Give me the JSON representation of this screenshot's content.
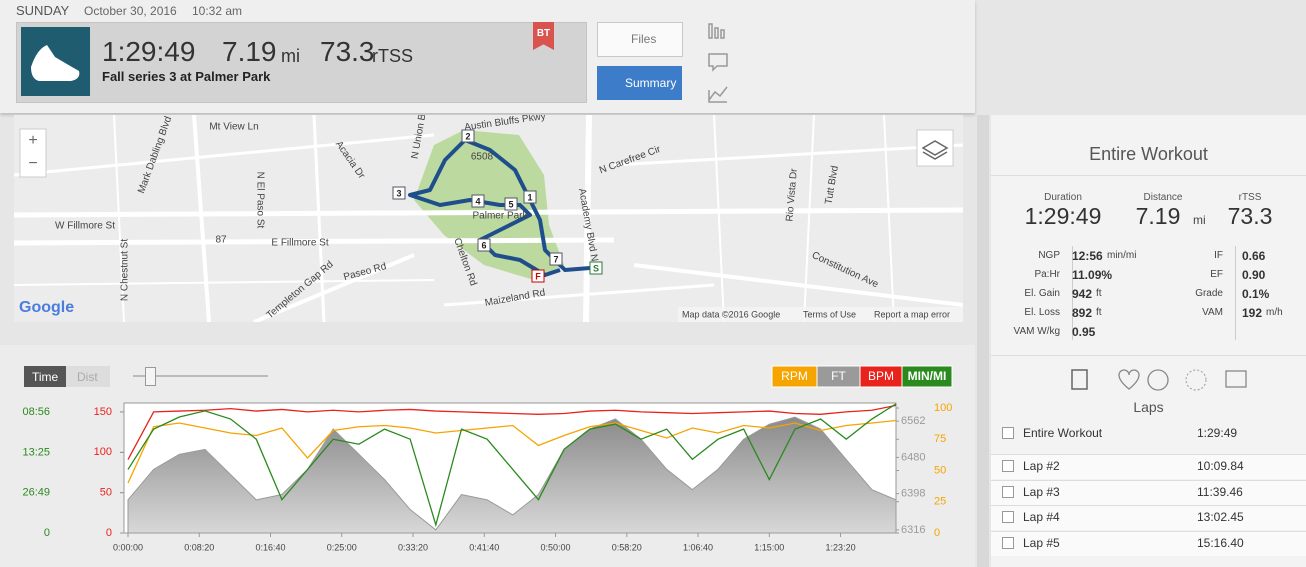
{
  "header": {
    "day": "SUNDAY",
    "date": "October 30, 2016",
    "time": "10:32 am"
  },
  "summary": {
    "duration": "1:29:49",
    "distance": "7.19",
    "distance_unit": "mi",
    "tss": "73.3",
    "tss_unit": "rTSS",
    "title": "Fall series 3 at Palmer Park",
    "badge": "BT"
  },
  "buttons": {
    "files": "Files",
    "summary": "Summary"
  },
  "map": {
    "labels": [
      "Mt View Ln",
      "Austin Bluffs Pkwy",
      "Acacia Dr",
      "N Carefree Cir",
      "Mark Dabling Blvd",
      "N El Paso St",
      "W Fillmore St",
      "E Fillmore St",
      "N Chestnut St",
      "Templeton Gap Rd",
      "Paseo Rd",
      "Chelton Rd",
      "Maizeland Rd",
      "Palmer Park",
      "Academy Blvd N",
      "Rio Vista Dr",
      "Tutt Blvd",
      "Constitution Ave",
      "N Union Blvd",
      "6508",
      "87"
    ],
    "markers": [
      "1",
      "2",
      "3",
      "4",
      "5",
      "6",
      "7",
      "F",
      "S"
    ],
    "attribution": "Map data ©2016 Google",
    "terms": "Terms of Use",
    "report": "Report a map error",
    "logo": "Google",
    "zoom_in": "+",
    "zoom_out": "−"
  },
  "chart_controls": {
    "time": "Time",
    "dist": "Dist"
  },
  "chart_data": {
    "type": "line",
    "x": [
      0,
      180,
      360,
      540,
      720,
      900,
      1080,
      1260,
      1440,
      1620,
      1800,
      1980,
      2160,
      2340,
      2520,
      2700,
      2880,
      3060,
      3240,
      3420,
      3600,
      3780,
      3960,
      4140,
      4320,
      4500,
      4680,
      4860,
      5040,
      5220,
      5389
    ],
    "xlim": [
      0,
      5389
    ],
    "xticks": [
      {
        "value": 0,
        "label": "0:00:00"
      },
      {
        "value": 500,
        "label": "0:08:20"
      },
      {
        "value": 1000,
        "label": "0:16:40"
      },
      {
        "value": 1500,
        "label": "0:25:00"
      },
      {
        "value": 2000,
        "label": "0:33:20"
      },
      {
        "value": 2500,
        "label": "0:41:40"
      },
      {
        "value": 3000,
        "label": "0:50:00"
      },
      {
        "value": 3500,
        "label": "0:58:20"
      },
      {
        "value": 4000,
        "label": "1:06:40"
      },
      {
        "value": 4500,
        "label": "1:15:00"
      },
      {
        "value": 5000,
        "label": "1:23:20"
      }
    ],
    "ylim": [
      0,
      161
    ],
    "yticks": [
      0,
      50,
      100,
      150
    ],
    "y2lim": [
      6309,
      6603
    ],
    "y2ticks": [
      6316,
      6398,
      6480,
      6562
    ],
    "y3lim": [
      0,
      104
    ],
    "y3ticks": [
      0,
      25,
      50,
      75,
      100
    ],
    "y4lim": [
      0,
      7.22
    ],
    "y4ticks": [
      0,
      {
        "value": 2.24,
        "label": "26:49"
      },
      {
        "value": 4.47,
        "label": "13:25"
      },
      {
        "value": 6.72,
        "label": "08:56"
      }
    ],
    "series": [
      {
        "name": "RPM",
        "color": "#f5a400",
        "axis": "y3",
        "values": [
          40,
          85,
          88,
          84,
          80,
          78,
          84,
          60,
          82,
          85,
          86,
          84,
          80,
          82,
          84,
          86,
          70,
          78,
          85,
          88,
          82,
          76,
          84,
          80,
          86,
          84,
          88,
          82,
          86,
          88,
          90
        ]
      },
      {
        "name": "FT",
        "color": "#9a9a9a",
        "axis": "y2",
        "fill": true,
        "values": [
          6384,
          6453,
          6487,
          6498,
          6441,
          6384,
          6396,
          6453,
          6544,
          6487,
          6430,
          6362,
          6316,
          6396,
          6384,
          6350,
          6396,
          6498,
          6544,
          6567,
          6521,
          6453,
          6407,
          6453,
          6521,
          6555,
          6571,
          6544,
          6475,
          6407,
          6384
        ]
      },
      {
        "name": "BPM",
        "color": "#e8231c",
        "axis": "y",
        "values": [
          91,
          150,
          151,
          152,
          154,
          151,
          153,
          150,
          152,
          150,
          152,
          153,
          151,
          150,
          149,
          148,
          147,
          148,
          151,
          152,
          150,
          149,
          148,
          149,
          150,
          151,
          148,
          147,
          150,
          152,
          158
        ]
      },
      {
        "name": "MIN/MI",
        "color": "#2a8a1e",
        "axis": "y4",
        "values": [
          3.53,
          5.77,
          6.44,
          6.78,
          6.33,
          5.21,
          1.85,
          3.53,
          5.21,
          4.93,
          5.77,
          5.21,
          0.45,
          5.77,
          5.21,
          3.53,
          1.85,
          4.65,
          5.77,
          6.05,
          5.21,
          5.77,
          4.09,
          5.21,
          5.77,
          2.97,
          5.77,
          6.33,
          5.21,
          6.33,
          7.17
        ]
      }
    ]
  },
  "side": {
    "title": "Entire Workout",
    "metrics": [
      {
        "label": "Duration",
        "value": "1:29:49"
      },
      {
        "label": "Distance",
        "value": "7.19",
        "unit": "mi"
      },
      {
        "label": "rTSS",
        "value": "73.3"
      }
    ],
    "stats_left": [
      {
        "label": "NGP",
        "value": "12:56",
        "unit": "min/mi"
      },
      {
        "label": "Pa:Hr",
        "value": "11.09%"
      },
      {
        "label": "El. Gain",
        "value": "942",
        "unit": "ft"
      },
      {
        "label": "El. Loss",
        "value": "892",
        "unit": "ft"
      },
      {
        "label": "VAM W/kg",
        "value": "0.95"
      }
    ],
    "stats_right": [
      {
        "label": "IF",
        "value": "0.66"
      },
      {
        "label": "EF",
        "value": "0.90"
      },
      {
        "label": "Grade",
        "value": "0.1%"
      },
      {
        "label": "VAM",
        "value": "192",
        "unit": "m/h"
      }
    ],
    "laps_title": "Laps",
    "laps": [
      {
        "name": "Entire Workout",
        "time": "1:29:49"
      },
      {
        "name": "Lap #2",
        "time": "10:09.84"
      },
      {
        "name": "Lap #3",
        "time": "11:39.46"
      },
      {
        "name": "Lap #4",
        "time": "13:02.45"
      },
      {
        "name": "Lap #5",
        "time": "15:16.40"
      }
    ]
  }
}
